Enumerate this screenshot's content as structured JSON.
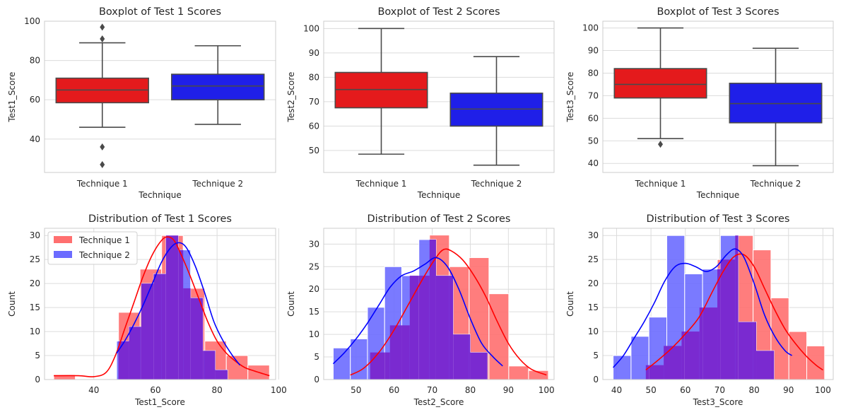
{
  "colors": {
    "technique1_box": "#e41a1c",
    "technique2_box": "#1f1fe8",
    "technique1_hist": "#ff6f6f",
    "technique2_hist": "#6b6bff",
    "overlap_hist": "#7a2ad0",
    "kde1": "#ff0000",
    "kde2": "#0000ff",
    "box_edge": "#4a4a4a",
    "grid": "#dcdcdc"
  },
  "chart_data": [
    {
      "type": "boxplot",
      "title": "Boxplot of Test 1 Scores",
      "xlabel": "Technique",
      "ylabel": "Test1_Score",
      "categories": [
        "Technique 1",
        "Technique 2"
      ],
      "ylim": [
        23,
        100
      ],
      "yticks": [
        40,
        60,
        80,
        100
      ],
      "grid": "horizontal",
      "boxes": [
        {
          "name": "Technique 1",
          "whisker_low": 46,
          "q1": 58.5,
          "median": 65,
          "q3": 71,
          "whisker_high": 89,
          "outliers": [
            97,
            91,
            36,
            27
          ]
        },
        {
          "name": "Technique 2",
          "whisker_low": 47.5,
          "q1": 60,
          "median": 67,
          "q3": 73,
          "whisker_high": 87.5,
          "outliers": []
        }
      ]
    },
    {
      "type": "boxplot",
      "title": "Boxplot of Test 2 Scores",
      "xlabel": "Technique",
      "ylabel": "Test2_Score",
      "categories": [
        "Technique 1",
        "Technique 2"
      ],
      "ylim": [
        41,
        103
      ],
      "yticks": [
        50,
        60,
        70,
        80,
        90,
        100
      ],
      "grid": "horizontal",
      "boxes": [
        {
          "name": "Technique 1",
          "whisker_low": 48.5,
          "q1": 67.5,
          "median": 75,
          "q3": 82,
          "whisker_high": 100,
          "outliers": []
        },
        {
          "name": "Technique 2",
          "whisker_low": 44,
          "q1": 60,
          "median": 67,
          "q3": 73.5,
          "whisker_high": 88.5,
          "outliers": []
        }
      ]
    },
    {
      "type": "boxplot",
      "title": "Boxplot of Test 3 Scores",
      "xlabel": "Technique",
      "ylabel": "Test3_Score",
      "categories": [
        "Technique 1",
        "Technique 2"
      ],
      "ylim": [
        36,
        103
      ],
      "yticks": [
        40,
        50,
        60,
        70,
        80,
        90,
        100
      ],
      "grid": "horizontal",
      "boxes": [
        {
          "name": "Technique 1",
          "whisker_low": 51,
          "q1": 69,
          "median": 75,
          "q3": 82,
          "whisker_high": 100,
          "outliers": [
            48.5
          ]
        },
        {
          "name": "Technique 2",
          "whisker_low": 39,
          "q1": 58,
          "median": 66.5,
          "q3": 75.5,
          "whisker_high": 91,
          "outliers": []
        }
      ]
    },
    {
      "type": "histogram",
      "title": "Distribution of Test 1 Scores",
      "xlabel": "Test1_Score",
      "ylabel": "Count",
      "xlim": [
        24,
        99
      ],
      "ylim": [
        0,
        31.5
      ],
      "xticks": [
        40,
        60,
        80,
        100
      ],
      "yticks": [
        0,
        5,
        10,
        15,
        20,
        25,
        30
      ],
      "grid": "both",
      "legend": {
        "position": "top-left",
        "entries": [
          "Technique 1",
          "Technique 2"
        ]
      },
      "series": [
        {
          "name": "Technique 1",
          "bin_edges": [
            27,
            34,
            41,
            48,
            55,
            62,
            69,
            76,
            83,
            90,
            97
          ],
          "counts": [
            1,
            0,
            0,
            14,
            23,
            30,
            19,
            8,
            5,
            3
          ],
          "kde_x": [
            27,
            35,
            40,
            44,
            47,
            50,
            53,
            56,
            59,
            62,
            64,
            66,
            68,
            71,
            74,
            77,
            80,
            83,
            86,
            89,
            92,
            95,
            97
          ],
          "kde_y": [
            0.8,
            0.8,
            0.6,
            1.5,
            5,
            10.5,
            16,
            21.5,
            26,
            29,
            29.7,
            29,
            26.5,
            22,
            17,
            12,
            8,
            5.5,
            3.8,
            2.5,
            1.8,
            1.2,
            0.8
          ]
        },
        {
          "name": "Technique 2",
          "bin_edges": [
            47.4,
            51.4,
            55.4,
            59.4,
            63.4,
            67.4,
            71.4,
            75.4,
            79.4,
            83.4,
            87.4
          ],
          "counts": [
            8,
            11,
            20,
            22,
            30,
            27,
            17,
            6,
            2,
            0
          ],
          "kde_x": [
            47.4,
            50,
            53,
            56,
            59,
            62,
            65,
            67.5,
            70,
            73,
            76,
            79,
            82,
            85,
            87.4
          ],
          "kde_y": [
            5.5,
            8,
            11.5,
            15.5,
            20,
            24.5,
            27.5,
            28.5,
            27.5,
            23.5,
            18,
            12,
            8,
            5,
            3
          ]
        }
      ]
    },
    {
      "type": "histogram",
      "title": "Distribution of Test 2 Scores",
      "xlabel": "Test2_Score",
      "ylabel": "Count",
      "xlim": [
        41.5,
        102
      ],
      "ylim": [
        0,
        33.5
      ],
      "xticks": [
        50,
        60,
        70,
        80,
        90,
        100
      ],
      "yticks": [
        0,
        5,
        10,
        15,
        20,
        25,
        30
      ],
      "grid": "both",
      "series": [
        {
          "name": "Technique 1",
          "bin_edges": [
            48.5,
            53.7,
            58.9,
            64.1,
            69.3,
            74.5,
            79.7,
            84.9,
            90.1,
            95.3,
            100.5
          ],
          "counts": [
            0,
            6,
            12,
            23,
            32,
            25,
            27,
            19,
            3,
            2
          ],
          "kde_x": [
            48.5,
            52,
            56,
            60,
            64,
            68,
            71,
            73,
            75,
            78,
            81,
            84,
            87,
            90,
            93,
            96,
            100
          ],
          "kde_y": [
            1,
            2.5,
            6,
            11,
            17,
            23,
            27,
            28.8,
            28.5,
            26.5,
            23,
            18.5,
            13,
            8,
            4.5,
            2.3,
            1
          ]
        },
        {
          "name": "Technique 2",
          "bin_edges": [
            44,
            48.5,
            53,
            57.5,
            62,
            66.5,
            71,
            75.5,
            80,
            84.5,
            89
          ],
          "counts": [
            7,
            9,
            16,
            25,
            23,
            31,
            23,
            10,
            6,
            0
          ],
          "kde_x": [
            44,
            47,
            50,
            53,
            56,
            59,
            62,
            65,
            68,
            71,
            74,
            77,
            80,
            83,
            86,
            88.5
          ],
          "kde_y": [
            3.5,
            6,
            9,
            12.5,
            16.5,
            20.5,
            23,
            24,
            25.5,
            27,
            25,
            20,
            13.5,
            8,
            5,
            3
          ]
        }
      ]
    },
    {
      "type": "histogram",
      "title": "Distribution of Test 3 Scores",
      "xlabel": "Test3_Score",
      "ylabel": "Count",
      "xlim": [
        36,
        103
      ],
      "ylim": [
        0,
        31.5
      ],
      "xticks": [
        40,
        50,
        60,
        70,
        80,
        90,
        100
      ],
      "yticks": [
        0,
        5,
        10,
        15,
        20,
        25,
        30
      ],
      "grid": "both",
      "series": [
        {
          "name": "Technique 1",
          "bin_edges": [
            48.5,
            53.7,
            58.9,
            64.1,
            69.3,
            74.5,
            79.7,
            84.9,
            90.1,
            95.3,
            100.5
          ],
          "counts": [
            3,
            7,
            10,
            15,
            25,
            30,
            27,
            17,
            10,
            7
          ],
          "kde_x": [
            48.5,
            52,
            56,
            60,
            64,
            68,
            71,
            74,
            77,
            80,
            83,
            86,
            89,
            92,
            95,
            98,
            100
          ],
          "kde_y": [
            2,
            4,
            6.5,
            9.5,
            13,
            18.5,
            22.5,
            25.5,
            26,
            23.5,
            19,
            14.5,
            10.5,
            7.5,
            5,
            3,
            2
          ]
        },
        {
          "name": "Technique 2",
          "bin_edges": [
            39,
            44.2,
            49.4,
            54.6,
            59.8,
            65,
            70.2,
            75.4,
            80.6,
            85.8,
            91
          ],
          "counts": [
            5,
            9,
            13,
            30,
            22,
            23,
            30,
            12,
            6,
            0
          ],
          "kde_x": [
            39,
            42,
            45,
            48,
            51,
            54,
            57,
            60,
            63,
            66,
            69,
            72,
            74.5,
            77,
            80,
            83,
            86,
            89,
            91
          ],
          "kde_y": [
            2.5,
            5,
            8.5,
            12,
            16,
            20.5,
            23.5,
            24.2,
            23.5,
            22.5,
            23.5,
            26,
            27.2,
            25.5,
            20,
            13.5,
            9,
            6,
            5
          ]
        }
      ]
    }
  ]
}
